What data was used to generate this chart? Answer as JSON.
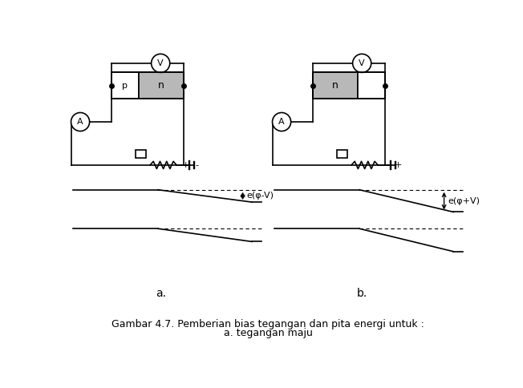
{
  "fig_width": 6.52,
  "fig_height": 4.84,
  "bg_color": "#ffffff",
  "circuit_color": "#000000",
  "gray_fill": "#b8b8b8",
  "caption_line1": "Gambar 4.7. Pemberian bias tegangan dan pita energi untuk :",
  "caption_line2": "a. tegangan maju",
  "label_a": "a.",
  "label_b": "b.",
  "label_V": "V",
  "label_A": "A",
  "label_na": "n",
  "label_nb": "n",
  "label_pa": "p",
  "energy_a": "e(φ-V)",
  "energy_b": "e(φ+V)"
}
